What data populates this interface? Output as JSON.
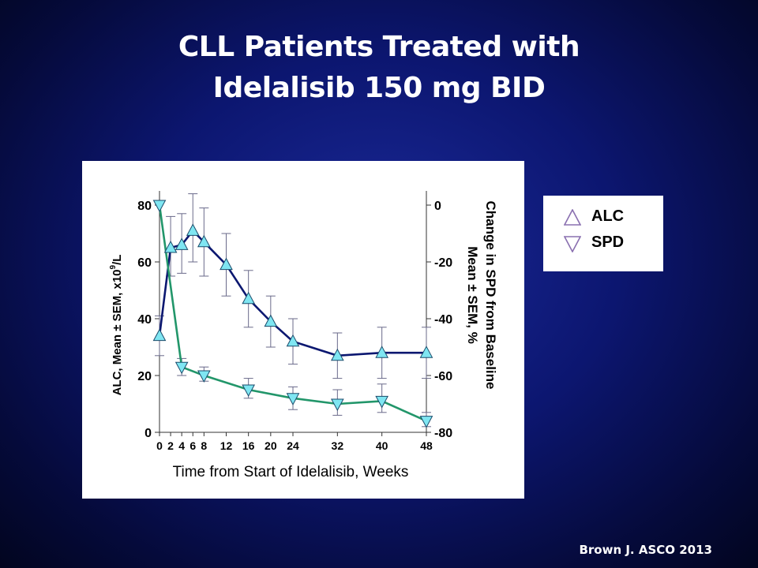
{
  "slide": {
    "title_line1": "CLL Patients Treated with",
    "title_line2": "Idelalisib 150 mg BID",
    "citation": "Brown J. ASCO 2013"
  },
  "legend": {
    "items": [
      {
        "label": "ALC",
        "marker": "triangle-up-outline",
        "color": "#8a70b0"
      },
      {
        "label": "SPD",
        "marker": "triangle-down-outline",
        "color": "#8a70b0"
      }
    ]
  },
  "colors": {
    "alc_line": "#0b1770",
    "spd_line": "#22966a",
    "marker_fill": "#7fe6f2",
    "error_bar": "#6a6a8a"
  },
  "chart_data": {
    "type": "line",
    "xlabel": "Time from Start of Idelalisib, Weeks",
    "ylabel_left": "ALC, Mean ± SEM, x10",
    "ylabel_left_sup": "9",
    "ylabel_left_suffix": "/L",
    "ylabel_right_line1": "Change in SPD from Baseline",
    "ylabel_right_line2": "Mean ± SEM, %",
    "x_ticks": [
      0,
      2,
      4,
      6,
      8,
      12,
      16,
      20,
      24,
      32,
      40,
      48
    ],
    "xlim": [
      0,
      48
    ],
    "ylim_left": [
      0,
      80
    ],
    "yticks_left": [
      0,
      20,
      40,
      60,
      80
    ],
    "ylim_right": [
      -80,
      0
    ],
    "yticks_right": [
      0,
      -20,
      -40,
      -60,
      -80
    ],
    "series": [
      {
        "name": "ALC",
        "axis": "left",
        "marker": "triangle-up",
        "x": [
          0,
          2,
          4,
          6,
          8,
          12,
          16,
          20,
          24,
          32,
          40,
          48
        ],
        "y": [
          34,
          65,
          66,
          71,
          67,
          59,
          47,
          39,
          32,
          27,
          28,
          28
        ],
        "err_low": [
          27,
          55,
          56,
          60,
          55,
          48,
          37,
          30,
          24,
          19,
          19,
          19
        ],
        "err_high": [
          41,
          76,
          77,
          84,
          79,
          70,
          57,
          48,
          40,
          35,
          37,
          37
        ]
      },
      {
        "name": "SPD",
        "axis": "right",
        "marker": "triangle-down",
        "x": [
          0,
          4,
          8,
          16,
          24,
          32,
          40,
          48
        ],
        "y": [
          0,
          -57,
          -60,
          -65,
          -68,
          -70,
          -69,
          -76
        ],
        "err_low": [
          0,
          -60,
          -62,
          -68,
          -72,
          -74,
          -73,
          -78
        ],
        "err_high": [
          0,
          -54,
          -57,
          -61,
          -64,
          -65,
          -63,
          -73
        ]
      }
    ]
  }
}
